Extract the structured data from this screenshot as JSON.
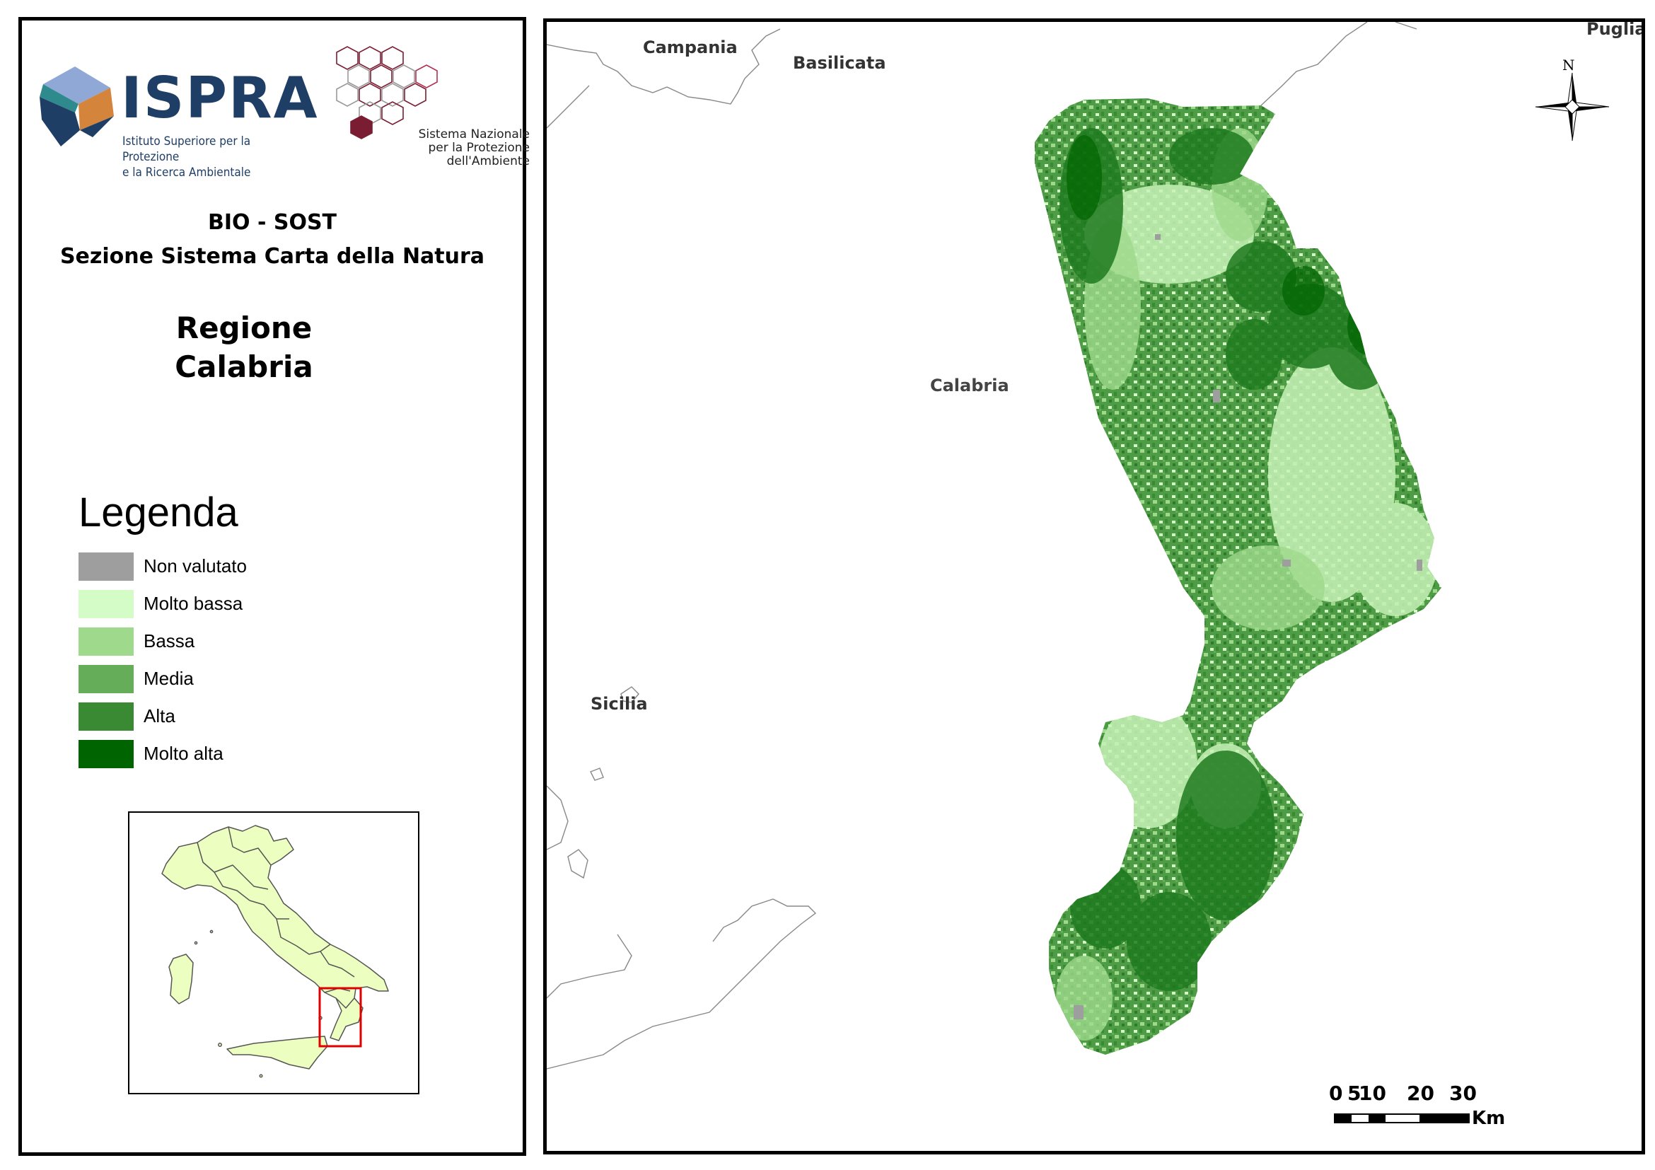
{
  "header": {
    "ispra_name": "ISPRA",
    "ispra_subtitle_1": "Istituto Superiore per la Protezione",
    "ispra_subtitle_2": "e la Ricerca Ambientale",
    "snpa_line1": "Sistema Nazionale",
    "snpa_line2": "per la Protezione",
    "snpa_line3": "dell'Ambiente"
  },
  "titles": {
    "org_line1": "BIO - SOST",
    "org_line2": "Sezione Sistema Carta della Natura",
    "region_line1": "Regione",
    "region_line2": "Calabria"
  },
  "legend": {
    "title": "Legenda",
    "items": [
      {
        "label": "Non valutato",
        "color": "#9e9e9e"
      },
      {
        "label": "Molto bassa",
        "color": "#d4fcc7"
      },
      {
        "label": "Bassa",
        "color": "#9fd98c"
      },
      {
        "label": "Media",
        "color": "#66ad5a"
      },
      {
        "label": "Alta",
        "color": "#3a8a33"
      },
      {
        "label": "Molto alta",
        "color": "#006400"
      }
    ]
  },
  "map": {
    "labels": {
      "campania": "Campania",
      "basilicata": "Basilicata",
      "puglia": "Puglia",
      "calabria": "Calabria",
      "sicilia": "Sicilia"
    },
    "north": "N",
    "scale_ticks": [
      "0",
      "5",
      "10",
      "20",
      "30"
    ],
    "scale_unit": "Km"
  },
  "colors": {
    "inset_fill": "#edffc0",
    "inset_highlight": "#e00000",
    "ispra_blue": "#1f3e66",
    "ispra_orange": "#d5843b",
    "ispra_light_blue": "#8fa8d6",
    "snpa_red": "#7a1d33"
  }
}
